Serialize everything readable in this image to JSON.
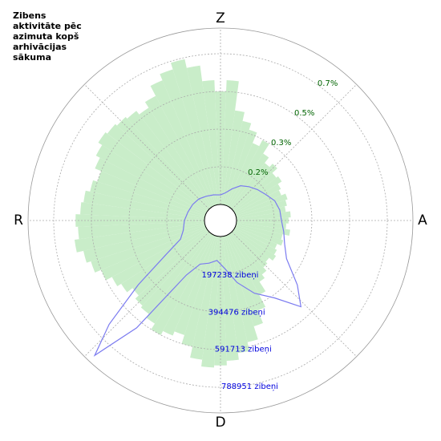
{
  "chart_data": {
    "type": "polar",
    "title": [
      "Zibens",
      "aktivitāte pēc",
      "azimuta kopš",
      "arhivācijas",
      "sākuma"
    ],
    "xticks": [
      {
        "value": 0,
        "label": "Z"
      },
      {
        "value": 90,
        "label": "A"
      },
      {
        "value": 180,
        "label": "D"
      },
      {
        "value": 270,
        "label": "R"
      }
    ],
    "ylim": [
      0,
      0.78
    ],
    "yticks": [
      {
        "value": 0.1667,
        "label": "0.2%"
      },
      {
        "value": 0.3333,
        "label": "0.3%"
      },
      {
        "value": 0.5,
        "label": "0.5%"
      },
      {
        "value": 0.6667,
        "label": "0.7%"
      }
    ],
    "y2lim": [
      0,
      923000
    ],
    "y2ticks": [
      {
        "value": 197238,
        "label": "197238 zibeņi"
      },
      {
        "value": 394476,
        "label": "394476 zibeņi"
      },
      {
        "value": 591713,
        "label": "591713 zibeņi"
      },
      {
        "value": 788951,
        "label": "788951 zibeņi"
      }
    ],
    "grid": true,
    "series": [
      {
        "type": "bar",
        "color": "#c9edc9",
        "x": [
          0,
          5,
          10,
          15,
          20,
          25,
          30,
          35,
          40,
          45,
          50,
          55,
          60,
          65,
          70,
          75,
          80,
          85,
          90,
          95,
          100,
          105,
          110,
          115,
          120,
          125,
          130,
          135,
          140,
          145,
          150,
          155,
          160,
          165,
          170,
          175,
          180,
          185,
          190,
          195,
          200,
          205,
          210,
          215,
          220,
          225,
          230,
          235,
          240,
          245,
          250,
          255,
          260,
          265,
          270,
          275,
          280,
          285,
          290,
          295,
          300,
          305,
          310,
          315,
          320,
          325,
          330,
          335,
          340,
          345,
          350,
          355
        ],
        "values": [
          0.5,
          0.55,
          0.42,
          0.38,
          0.35,
          0.3,
          0.33,
          0.28,
          0.25,
          0.27,
          0.24,
          0.25,
          0.23,
          0.22,
          0.24,
          0.23,
          0.22,
          0.24,
          0.23,
          0.22,
          0.24,
          0.21,
          0.22,
          0.2,
          0.21,
          0.22,
          0.2,
          0.21,
          0.23,
          0.25,
          0.3,
          0.36,
          0.42,
          0.48,
          0.52,
          0.55,
          0.57,
          0.58,
          0.55,
          0.5,
          0.46,
          0.48,
          0.5,
          0.47,
          0.45,
          0.44,
          0.42,
          0.45,
          0.47,
          0.5,
          0.53,
          0.55,
          0.58,
          0.56,
          0.57,
          0.55,
          0.54,
          0.52,
          0.5,
          0.53,
          0.55,
          0.57,
          0.56,
          0.55,
          0.54,
          0.52,
          0.55,
          0.6,
          0.63,
          0.66,
          0.62,
          0.55
        ]
      },
      {
        "type": "line",
        "color": "#7b7bf0",
        "axis": "y2",
        "x": [
          0,
          10,
          20,
          30,
          40,
          50,
          60,
          70,
          80,
          90,
          100,
          110,
          120,
          130,
          137,
          145,
          155,
          165,
          175,
          185,
          195,
          205,
          212,
          218,
          223,
          227,
          232,
          238,
          245,
          255,
          270,
          285,
          300,
          315,
          330,
          345
        ],
        "values": [
          50000,
          63000,
          92000,
          126000,
          147000,
          168000,
          189000,
          218000,
          231000,
          235000,
          252000,
          273000,
          315000,
          441000,
          533000,
          411000,
          336000,
          252000,
          168000,
          126000,
          147000,
          168000,
          252000,
          629000,
          881000,
          713000,
          462000,
          252000,
          147000,
          118000,
          105000,
          92000,
          84000,
          76000,
          63000,
          55000
        ]
      }
    ]
  }
}
